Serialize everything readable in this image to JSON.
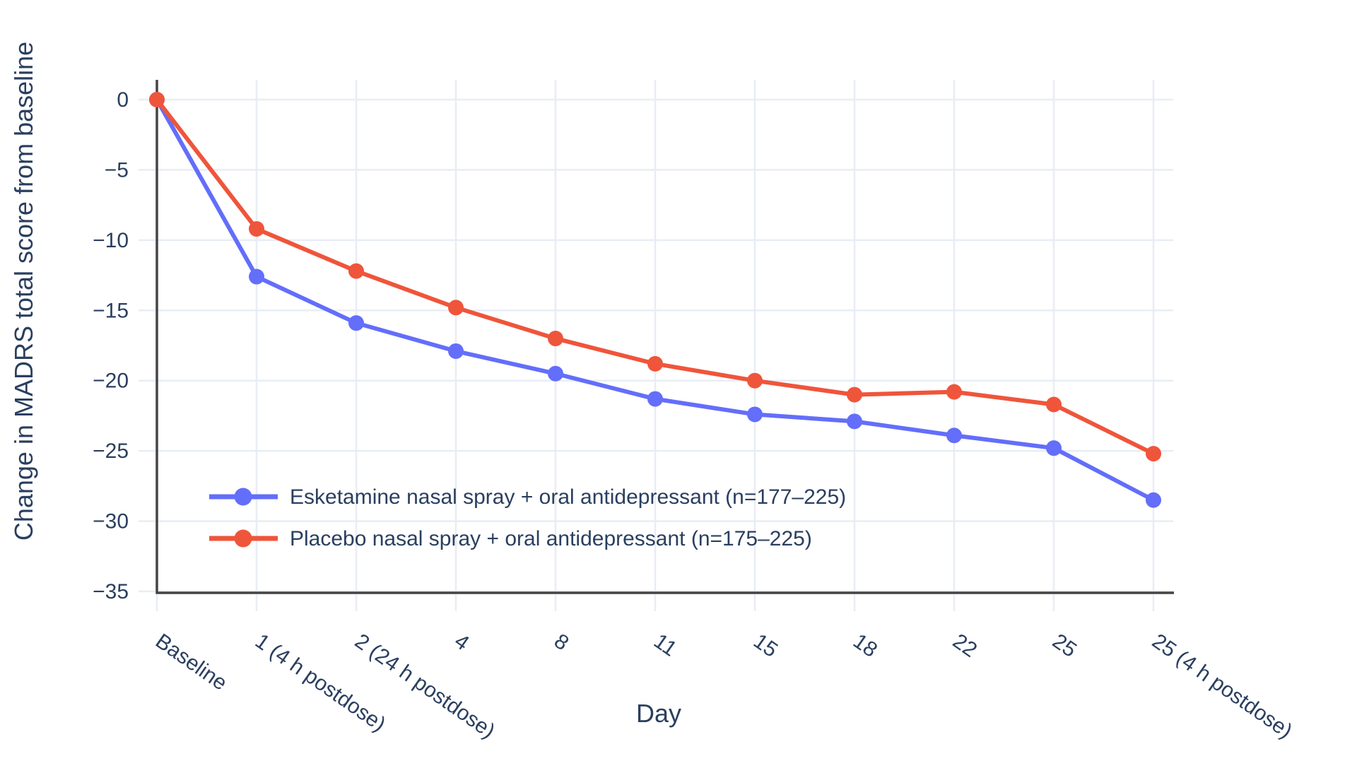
{
  "figure": {
    "background": "#ffffff"
  },
  "chart_data": {
    "type": "line",
    "title": "",
    "xlabel": "Day",
    "ylabel": "Change in MADRS total score from baseline",
    "categories": [
      "Baseline",
      "1 (4 h postdose)",
      "2 (24 h postdose)",
      "4",
      "8",
      "11",
      "15",
      "18",
      "22",
      "25",
      "25 (4 h postdose)"
    ],
    "series": [
      {
        "name": "Esketamine nasal spray + oral antidepressant (n=177–225)",
        "color": "#636EFA",
        "values": [
          0,
          -12.6,
          -15.9,
          -17.9,
          -19.5,
          -21.3,
          -22.4,
          -22.9,
          -23.9,
          -24.8,
          -28.5
        ]
      },
      {
        "name": "Placebo nasal spray + oral antidepressant (n=175–225)",
        "color": "#EF553B",
        "values": [
          0,
          -9.2,
          -12.2,
          -14.8,
          -17.0,
          -18.8,
          -20.0,
          -21.0,
          -20.8,
          -21.7,
          -25.2
        ]
      }
    ],
    "ylim": [
      -35,
      0
    ],
    "yticks": [
      0,
      -5,
      -10,
      -15,
      -20,
      -25,
      -30,
      -35
    ],
    "grid": true,
    "legend_position": "inside-lower-left",
    "xtick_angle_deg": 35,
    "colors": {
      "grid": "#E8EDF5",
      "axis_line": "#444444",
      "text": "#2A3F5F",
      "background": "#FFFFFF"
    }
  }
}
